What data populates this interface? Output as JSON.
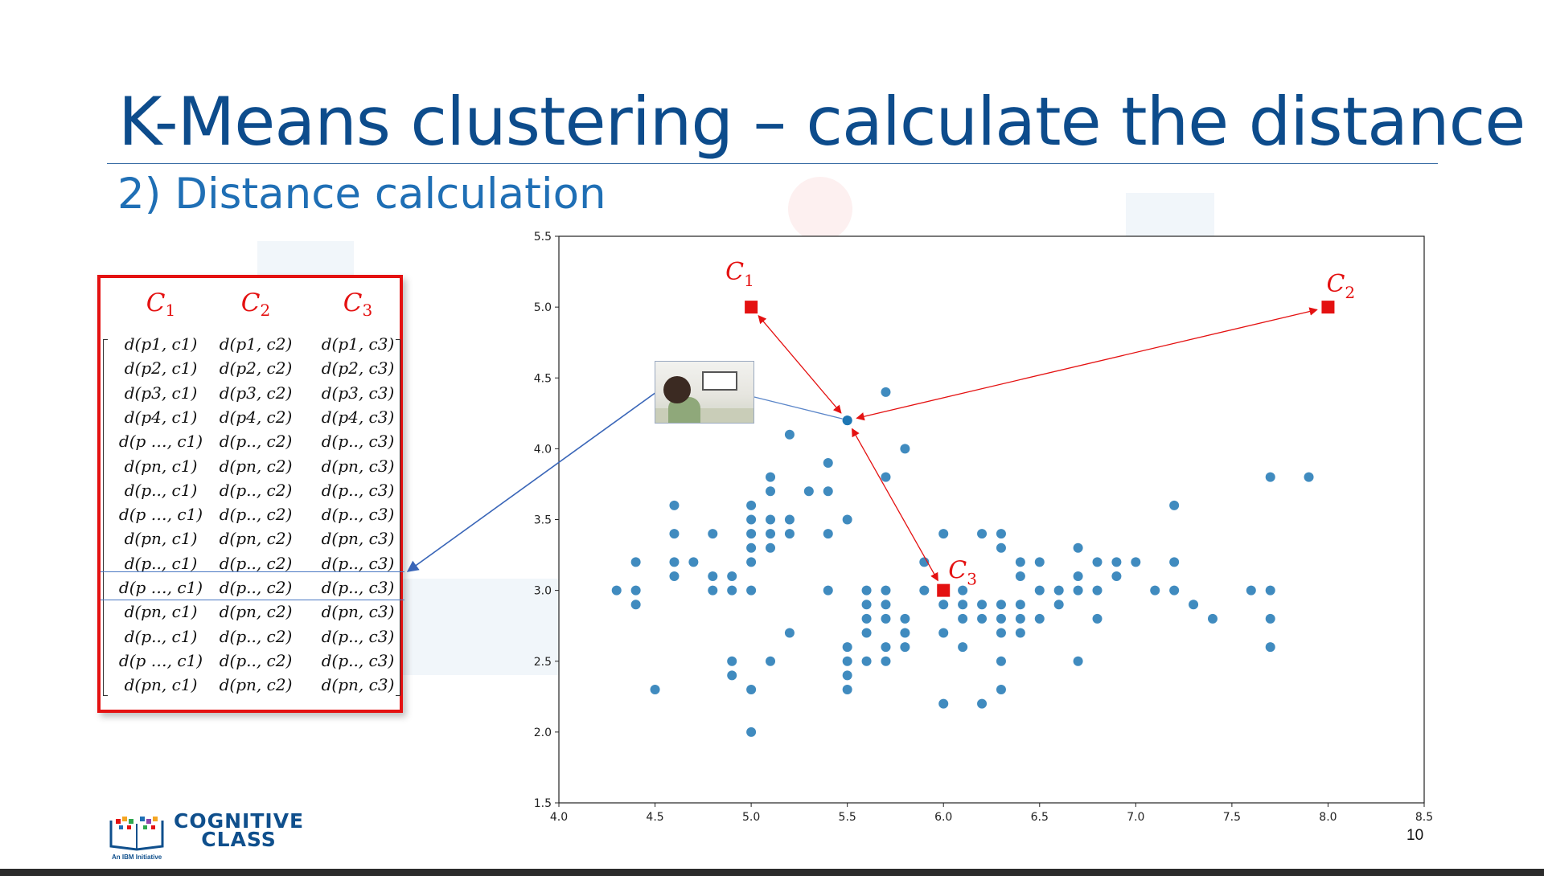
{
  "slide": {
    "title": "K-Means clustering – calculate the distance",
    "subtitle": "2) Distance calculation",
    "page_number": "10"
  },
  "logo": {
    "line1": "COGNITIVE",
    "line2": "CLASS",
    "tagline": "An IBM Initiative"
  },
  "matrix": {
    "headers": [
      {
        "base": "C",
        "sub": "1"
      },
      {
        "base": "C",
        "sub": "2"
      },
      {
        "base": "C",
        "sub": "3"
      }
    ],
    "rows": [
      [
        "d(p1, c1)",
        "d(p1, c2)",
        "d(p1, c3)"
      ],
      [
        "d(p2, c1)",
        "d(p2, c2)",
        "d(p2, c3)"
      ],
      [
        "d(p3, c1)",
        "d(p3, c2)",
        "d(p3, c3)"
      ],
      [
        "d(p4, c1)",
        "d(p4, c2)",
        "d(p4, c3)"
      ],
      [
        "d(p …, c1)",
        "d(p.., c2)",
        "d(p.., c3)"
      ],
      [
        "d(pn, c1)",
        "d(pn, c2)",
        "d(pn, c3)"
      ],
      [
        "d(p.., c1)",
        "d(p.., c2)",
        "d(p.., c3)"
      ],
      [
        "d(p …, c1)",
        "d(p.., c2)",
        "d(p.., c3)"
      ],
      [
        "d(pn, c1)",
        "d(pn, c2)",
        "d(pn, c3)"
      ],
      [
        "d(p.., c1)",
        "d(p.., c2)",
        "d(p.., c3)"
      ],
      [
        "d(p …, c1)",
        "d(p.., c2)",
        "d(p.., c3)"
      ],
      [
        "d(pn, c1)",
        "d(pn, c2)",
        "d(pn, c3)"
      ],
      [
        "d(p.., c1)",
        "d(p.., c2)",
        "d(p.., c3)"
      ],
      [
        "d(p …, c1)",
        "d(p.., c2)",
        "d(p.., c3)"
      ],
      [
        "d(pn, c1)",
        "d(pn, c2)",
        "d(pn, c3)"
      ]
    ]
  },
  "chart_data": {
    "type": "scatter",
    "xlim": [
      4.0,
      8.5
    ],
    "ylim": [
      1.5,
      5.5
    ],
    "xticks": [
      "4.0",
      "4.5",
      "5.0",
      "5.5",
      "6.0",
      "6.5",
      "7.0",
      "7.5",
      "8.0",
      "8.5"
    ],
    "yticks": [
      "1.5",
      "2.0",
      "2.5",
      "3.0",
      "3.5",
      "4.0",
      "4.5",
      "5.0",
      "5.5"
    ],
    "grid": false,
    "point_color": "#1f77b4",
    "centroid_color": "#e41111",
    "points": [
      [
        4.3,
        3.0
      ],
      [
        4.4,
        3.0
      ],
      [
        4.4,
        2.9
      ],
      [
        4.4,
        3.2
      ],
      [
        4.5,
        2.3
      ],
      [
        4.6,
        3.1
      ],
      [
        4.6,
        3.2
      ],
      [
        4.6,
        3.4
      ],
      [
        4.6,
        3.6
      ],
      [
        4.7,
        3.2
      ],
      [
        4.8,
        3.0
      ],
      [
        4.8,
        3.1
      ],
      [
        4.8,
        3.4
      ],
      [
        4.9,
        3.0
      ],
      [
        4.9,
        3.1
      ],
      [
        4.9,
        2.5
      ],
      [
        4.9,
        2.4
      ],
      [
        5.0,
        3.0
      ],
      [
        5.0,
        3.2
      ],
      [
        5.0,
        3.3
      ],
      [
        5.0,
        3.4
      ],
      [
        5.0,
        3.5
      ],
      [
        5.0,
        3.6
      ],
      [
        5.0,
        2.3
      ],
      [
        5.0,
        2.0
      ],
      [
        5.1,
        3.3
      ],
      [
        5.1,
        3.4
      ],
      [
        5.1,
        3.5
      ],
      [
        5.1,
        3.7
      ],
      [
        5.1,
        3.8
      ],
      [
        5.1,
        2.5
      ],
      [
        5.2,
        3.4
      ],
      [
        5.2,
        3.5
      ],
      [
        5.2,
        4.1
      ],
      [
        5.2,
        2.7
      ],
      [
        5.3,
        3.7
      ],
      [
        5.4,
        3.0
      ],
      [
        5.4,
        3.4
      ],
      [
        5.4,
        3.7
      ],
      [
        5.4,
        3.9
      ],
      [
        5.5,
        3.5
      ],
      [
        5.5,
        4.2
      ],
      [
        5.5,
        2.3
      ],
      [
        5.5,
        2.4
      ],
      [
        5.5,
        2.5
      ],
      [
        5.5,
        2.6
      ],
      [
        5.6,
        2.5
      ],
      [
        5.6,
        2.7
      ],
      [
        5.6,
        2.8
      ],
      [
        5.6,
        2.9
      ],
      [
        5.6,
        3.0
      ],
      [
        5.7,
        2.5
      ],
      [
        5.7,
        2.6
      ],
      [
        5.7,
        2.8
      ],
      [
        5.7,
        2.9
      ],
      [
        5.7,
        3.0
      ],
      [
        5.7,
        3.8
      ],
      [
        5.7,
        4.4
      ],
      [
        5.8,
        2.6
      ],
      [
        5.8,
        2.7
      ],
      [
        5.8,
        2.8
      ],
      [
        5.8,
        4.0
      ],
      [
        5.9,
        3.0
      ],
      [
        5.9,
        3.2
      ],
      [
        6.0,
        2.2
      ],
      [
        6.0,
        2.7
      ],
      [
        6.0,
        2.9
      ],
      [
        6.0,
        3.4
      ],
      [
        6.1,
        2.6
      ],
      [
        6.1,
        2.8
      ],
      [
        6.1,
        2.9
      ],
      [
        6.1,
        3.0
      ],
      [
        6.2,
        2.2
      ],
      [
        6.2,
        2.8
      ],
      [
        6.2,
        2.9
      ],
      [
        6.2,
        3.4
      ],
      [
        6.3,
        2.3
      ],
      [
        6.3,
        2.5
      ],
      [
        6.3,
        2.7
      ],
      [
        6.3,
        2.8
      ],
      [
        6.3,
        2.9
      ],
      [
        6.3,
        3.3
      ],
      [
        6.3,
        3.4
      ],
      [
        6.4,
        2.7
      ],
      [
        6.4,
        2.8
      ],
      [
        6.4,
        2.9
      ],
      [
        6.4,
        3.1
      ],
      [
        6.4,
        3.2
      ],
      [
        6.5,
        2.8
      ],
      [
        6.5,
        3.0
      ],
      [
        6.5,
        3.2
      ],
      [
        6.6,
        2.9
      ],
      [
        6.6,
        3.0
      ],
      [
        6.7,
        2.5
      ],
      [
        6.7,
        3.0
      ],
      [
        6.7,
        3.1
      ],
      [
        6.7,
        3.3
      ],
      [
        6.8,
        2.8
      ],
      [
        6.8,
        3.0
      ],
      [
        6.8,
        3.2
      ],
      [
        6.9,
        3.1
      ],
      [
        6.9,
        3.2
      ],
      [
        7.0,
        3.2
      ],
      [
        7.1,
        3.0
      ],
      [
        7.2,
        3.0
      ],
      [
        7.2,
        3.2
      ],
      [
        7.2,
        3.6
      ],
      [
        7.3,
        2.9
      ],
      [
        7.4,
        2.8
      ],
      [
        7.6,
        3.0
      ],
      [
        7.7,
        2.6
      ],
      [
        7.7,
        2.8
      ],
      [
        7.7,
        3.0
      ],
      [
        7.7,
        3.8
      ],
      [
        7.9,
        3.8
      ]
    ],
    "centroids": [
      {
        "label": "C",
        "sub": "1",
        "x": 5.0,
        "y": 5.0
      },
      {
        "label": "C",
        "sub": "2",
        "x": 8.0,
        "y": 5.0
      },
      {
        "label": "C",
        "sub": "3",
        "x": 6.0,
        "y": 3.0
      }
    ],
    "highlighted_point": [
      5.5,
      4.2
    ]
  }
}
